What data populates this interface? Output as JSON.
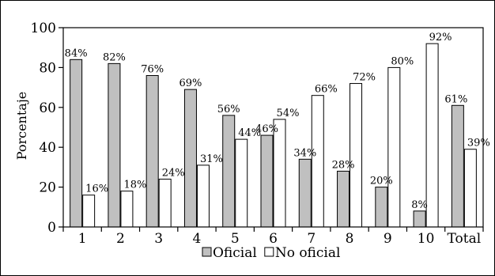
{
  "chart_data": {
    "type": "bar",
    "categories": [
      "1",
      "2",
      "3",
      "4",
      "5",
      "6",
      "7",
      "8",
      "9",
      "10",
      "Total"
    ],
    "series": [
      {
        "name": "Oficial",
        "values": [
          84,
          82,
          76,
          69,
          56,
          46,
          34,
          28,
          20,
          8,
          61
        ],
        "labels": [
          "84%",
          "82%",
          "76%",
          "69%",
          "56%",
          "46%",
          "34%",
          "28%",
          "20%",
          "8%",
          "61%"
        ],
        "color": "#c0c0c0"
      },
      {
        "name": "No oficial",
        "values": [
          16,
          18,
          24,
          31,
          44,
          54,
          66,
          72,
          80,
          92,
          39
        ],
        "labels": [
          "16%",
          "18%",
          "24%",
          "31%",
          "44%",
          "54%",
          "66%",
          "72%",
          "80%",
          "92%",
          "39%"
        ],
        "color": "#ffffff"
      }
    ],
    "title": "",
    "xlabel": "",
    "ylabel": "Porcentaje",
    "ylim": [
      0,
      100
    ],
    "yticks": [
      0,
      20,
      40,
      60,
      80,
      100
    ],
    "grid": false,
    "legend": "bottom-center"
  }
}
